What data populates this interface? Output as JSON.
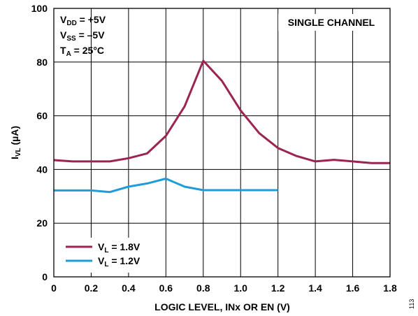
{
  "chart_data": {
    "type": "line",
    "xlabel": "LOGIC LEVEL, INx OR EN (V)",
    "ylabel": {
      "main": "I",
      "sub": "VL",
      "rest": " (µA)"
    },
    "xlim": [
      0,
      1.8
    ],
    "ylim": [
      0,
      100
    ],
    "xticks": [
      0,
      0.2,
      0.4,
      0.6,
      0.8,
      1.0,
      1.2,
      1.4,
      1.6,
      1.8
    ],
    "xtick_labels": [
      "0",
      "0.2",
      "0.4",
      "0.6",
      "0.8",
      "1.0",
      "1.2",
      "1.4",
      "1.6",
      "1.8"
    ],
    "yticks": [
      0,
      20,
      40,
      60,
      80,
      100
    ],
    "ytick_labels": [
      "0",
      "20",
      "40",
      "60",
      "80",
      "100"
    ],
    "grid": true,
    "legend_position": "bottom-left",
    "conditions": [
      {
        "main": "V",
        "sub": "DD",
        "rest": " = +5V"
      },
      {
        "main": "V",
        "sub": "SS",
        "rest": " = –5V"
      },
      {
        "main": "T",
        "sub": "A",
        "rest": " = 25°C"
      }
    ],
    "annotation": "SINGLE CHANNEL",
    "series": [
      {
        "name": {
          "main": "V",
          "sub": "L",
          "rest": " = 1.8V"
        },
        "color": "#9b2450",
        "x": [
          0,
          0.1,
          0.2,
          0.3,
          0.4,
          0.5,
          0.6,
          0.7,
          0.8,
          0.9,
          1.0,
          1.1,
          1.2,
          1.3,
          1.4,
          1.5,
          1.6,
          1.7,
          1.8
        ],
        "y": [
          43.5,
          43.0,
          43.0,
          43.0,
          44.2,
          46.0,
          52.5,
          63.5,
          80.5,
          73.0,
          62.0,
          53.5,
          48.0,
          45.0,
          43.0,
          43.6,
          43.0,
          42.4,
          42.4
        ]
      },
      {
        "name": {
          "main": "V",
          "sub": "L",
          "rest": " = 1.2V"
        },
        "color": "#1e9ed8",
        "x": [
          0,
          0.1,
          0.2,
          0.3,
          0.4,
          0.5,
          0.6,
          0.7,
          0.8,
          0.9,
          1.0,
          1.1,
          1.2
        ],
        "y": [
          32.2,
          32.2,
          32.2,
          31.6,
          33.6,
          34.8,
          36.6,
          33.6,
          32.3,
          32.3,
          32.3,
          32.3,
          32.3
        ]
      }
    ]
  },
  "figure_number": "113"
}
